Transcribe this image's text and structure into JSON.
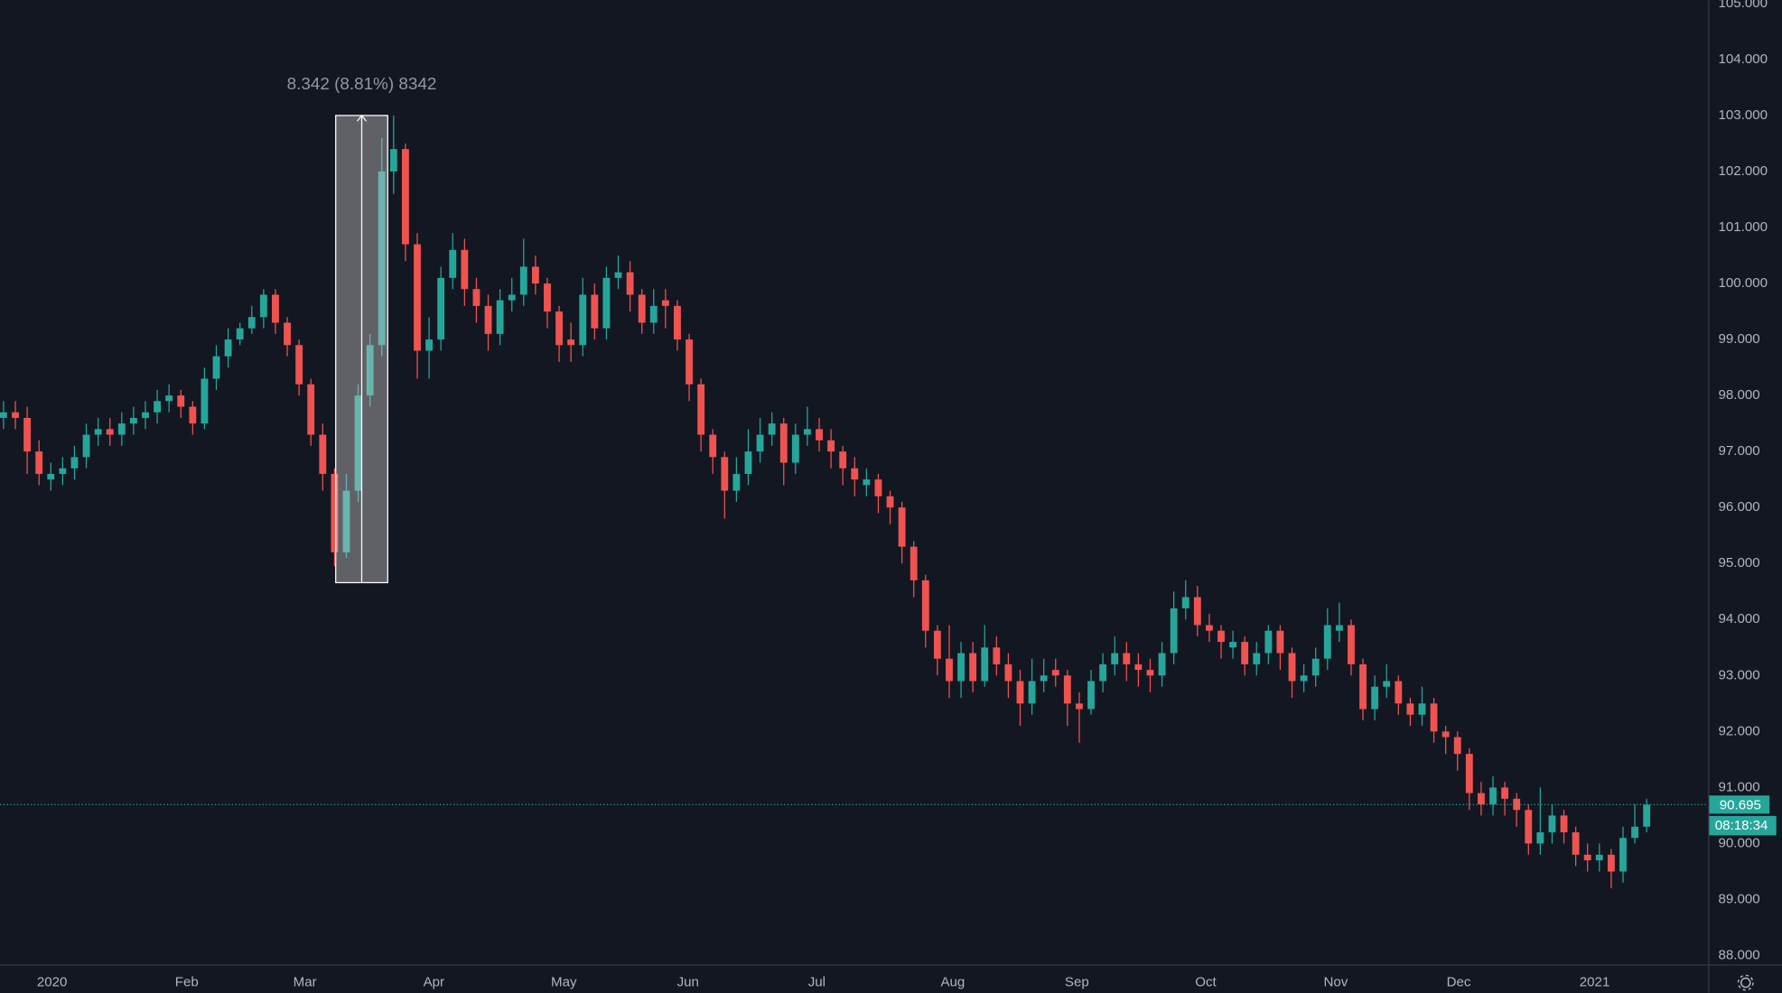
{
  "chart_data": {
    "type": "candlestick",
    "background": "#131722",
    "up_color": "#26a69a",
    "down_color": "#ef5350",
    "grid": false,
    "xlim": [
      -0.3,
      144.2
    ],
    "xticks": [
      {
        "value": 4.1,
        "label": "2020"
      },
      {
        "value": 15.5,
        "label": "Feb"
      },
      {
        "value": 25.5,
        "label": "Mar"
      },
      {
        "value": 36.4,
        "label": "Apr"
      },
      {
        "value": 47.4,
        "label": "May"
      },
      {
        "value": 57.9,
        "label": "Jun"
      },
      {
        "value": 68.8,
        "label": "Jul"
      },
      {
        "value": 80.3,
        "label": "Aug"
      },
      {
        "value": 90.8,
        "label": "Sep"
      },
      {
        "value": 101.7,
        "label": "Oct"
      },
      {
        "value": 112.7,
        "label": "Nov"
      },
      {
        "value": 123.1,
        "label": "Dec"
      },
      {
        "value": 134.6,
        "label": "2021"
      }
    ],
    "ylim": [
      87.84,
      105.06
    ],
    "yticks": [
      {
        "value": 88,
        "label": "88.000"
      },
      {
        "value": 89,
        "label": "89.000"
      },
      {
        "value": 90,
        "label": "90.000"
      },
      {
        "value": 91,
        "label": "91.000"
      },
      {
        "value": 92,
        "label": "92.000"
      },
      {
        "value": 93,
        "label": "93.000"
      },
      {
        "value": 94,
        "label": "94.000"
      },
      {
        "value": 95,
        "label": "95.000"
      },
      {
        "value": 96,
        "label": "96.000"
      },
      {
        "value": 97,
        "label": "97.000"
      },
      {
        "value": 98,
        "label": "98.000"
      },
      {
        "value": 99,
        "label": "99.000"
      },
      {
        "value": 100,
        "label": "100.000"
      },
      {
        "value": 101,
        "label": "101.000"
      },
      {
        "value": 102,
        "label": "102.000"
      },
      {
        "value": 103,
        "label": "103.000"
      },
      {
        "value": 104,
        "label": "104.000"
      },
      {
        "value": 105,
        "label": "105.000"
      }
    ],
    "open": [
      97.6,
      97.7,
      97.6,
      97.0,
      96.5,
      96.6,
      96.7,
      96.9,
      97.3,
      97.4,
      97.3,
      97.5,
      97.6,
      97.7,
      97.9,
      98.0,
      97.8,
      97.5,
      98.3,
      98.7,
      99.0,
      99.2,
      99.4,
      99.8,
      99.3,
      98.9,
      98.2,
      97.3,
      96.6,
      95.2,
      96.3,
      98.0,
      98.9,
      102.0,
      102.4,
      100.7,
      98.8,
      99.0,
      100.1,
      100.6,
      99.9,
      99.6,
      99.1,
      99.7,
      99.8,
      100.3,
      100.0,
      99.5,
      99.0,
      98.9,
      99.8,
      99.2,
      100.1,
      100.2,
      99.8,
      99.3,
      99.7,
      99.6,
      99.0,
      98.2,
      97.3,
      96.9,
      96.3,
      96.6,
      97.0,
      97.3,
      97.5,
      96.8,
      97.3,
      97.4,
      97.2,
      97.0,
      96.7,
      96.4,
      96.5,
      96.2,
      96.0,
      95.3,
      94.7,
      93.8,
      93.3,
      92.9,
      93.4,
      92.9,
      93.5,
      93.2,
      92.9,
      92.5,
      92.9,
      93.1,
      93.0,
      92.5,
      92.4,
      92.9,
      93.2,
      93.4,
      93.2,
      93.1,
      93.0,
      93.4,
      94.2,
      94.4,
      93.9,
      93.8,
      93.5,
      93.6,
      93.2,
      93.4,
      93.8,
      93.4,
      92.9,
      93.0,
      93.3,
      93.8,
      93.9,
      93.2,
      92.4,
      92.8,
      92.9,
      92.5,
      92.3,
      92.5,
      92.0,
      91.9,
      91.6,
      90.9,
      90.7,
      91.0,
      90.8,
      90.6,
      90.0,
      90.2,
      90.5,
      90.2,
      89.8,
      89.7,
      89.8,
      89.5,
      90.1,
      90.3
    ],
    "high": [
      97.9,
      97.9,
      97.8,
      97.2,
      96.8,
      96.9,
      97.1,
      97.5,
      97.6,
      97.6,
      97.7,
      97.8,
      97.9,
      98.1,
      98.2,
      98.1,
      97.9,
      98.5,
      98.9,
      99.2,
      99.3,
      99.6,
      99.9,
      99.9,
      99.4,
      99.0,
      98.3,
      97.5,
      96.7,
      96.6,
      98.2,
      99.1,
      102.6,
      103.0,
      102.5,
      100.9,
      99.4,
      100.3,
      100.9,
      100.8,
      100.1,
      99.8,
      99.9,
      100.1,
      100.8,
      100.5,
      100.1,
      99.6,
      99.3,
      100.1,
      100.0,
      100.3,
      100.5,
      100.4,
      99.9,
      99.9,
      99.9,
      99.7,
      99.1,
      98.3,
      97.4,
      97.0,
      96.9,
      97.4,
      97.6,
      97.7,
      97.6,
      97.5,
      97.8,
      97.6,
      97.4,
      97.1,
      96.9,
      96.7,
      96.6,
      96.3,
      96.1,
      95.4,
      94.8,
      93.9,
      93.9,
      93.6,
      93.6,
      93.9,
      93.7,
      93.4,
      93.1,
      93.3,
      93.3,
      93.3,
      93.1,
      92.7,
      93.1,
      93.4,
      93.7,
      93.6,
      93.4,
      93.3,
      93.6,
      94.5,
      94.7,
      94.6,
      94.1,
      93.9,
      93.8,
      93.7,
      93.6,
      93.9,
      93.9,
      93.5,
      93.2,
      93.5,
      94.2,
      94.3,
      94.0,
      93.3,
      93.0,
      93.2,
      93.0,
      92.6,
      92.8,
      92.6,
      92.1,
      92.0,
      91.7,
      91.1,
      91.2,
      91.1,
      90.9,
      90.7,
      91.0,
      90.7,
      90.6,
      90.3,
      90.0,
      90.0,
      89.9,
      90.3,
      90.7,
      90.8
    ],
    "low": [
      97.4,
      97.4,
      96.6,
      96.4,
      96.3,
      96.4,
      96.5,
      96.7,
      97.1,
      97.1,
      97.1,
      97.3,
      97.4,
      97.5,
      97.7,
      97.6,
      97.3,
      97.4,
      98.1,
      98.5,
      98.9,
      99.1,
      99.2,
      99.1,
      98.7,
      98.0,
      97.1,
      96.3,
      94.95,
      95.1,
      96.1,
      97.8,
      98.7,
      101.6,
      100.4,
      98.3,
      98.3,
      98.8,
      99.9,
      99.6,
      99.3,
      98.8,
      98.9,
      99.5,
      99.6,
      99.8,
      99.2,
      98.6,
      98.6,
      98.7,
      99.0,
      99.0,
      99.9,
      99.5,
      99.1,
      99.1,
      99.2,
      98.8,
      97.9,
      97.0,
      96.6,
      95.8,
      96.1,
      96.4,
      96.8,
      97.1,
      96.4,
      96.6,
      97.1,
      97.0,
      96.7,
      96.4,
      96.2,
      96.2,
      95.9,
      95.7,
      95.0,
      94.4,
      93.5,
      93.0,
      92.6,
      92.6,
      92.7,
      92.8,
      93.0,
      92.6,
      92.1,
      92.3,
      92.7,
      92.8,
      92.1,
      91.8,
      92.3,
      92.7,
      93.0,
      92.9,
      92.8,
      92.7,
      92.8,
      93.2,
      94.0,
      93.7,
      93.6,
      93.3,
      93.3,
      93.0,
      93.0,
      93.2,
      93.1,
      92.6,
      92.7,
      92.8,
      93.1,
      93.6,
      93.0,
      92.2,
      92.2,
      92.6,
      92.3,
      92.1,
      92.1,
      91.8,
      91.6,
      91.3,
      90.6,
      90.5,
      90.5,
      90.5,
      90.3,
      89.8,
      89.8,
      90.0,
      90.0,
      89.6,
      89.5,
      89.5,
      89.2,
      89.3,
      90.0,
      90.2
    ],
    "close": [
      97.7,
      97.6,
      97.0,
      96.6,
      96.6,
      96.7,
      96.9,
      97.3,
      97.4,
      97.3,
      97.5,
      97.6,
      97.7,
      97.9,
      98.0,
      97.8,
      97.5,
      98.3,
      98.7,
      99.0,
      99.2,
      99.4,
      99.8,
      99.3,
      98.9,
      98.2,
      97.3,
      96.6,
      95.2,
      96.3,
      98.0,
      98.9,
      102.0,
      102.4,
      100.7,
      98.8,
      99.0,
      100.1,
      100.6,
      99.9,
      99.6,
      99.1,
      99.7,
      99.8,
      100.3,
      100.0,
      99.5,
      98.9,
      98.9,
      99.8,
      99.2,
      100.1,
      100.2,
      99.8,
      99.3,
      99.6,
      99.6,
      99.0,
      98.2,
      97.3,
      96.9,
      96.3,
      96.6,
      97.0,
      97.3,
      97.5,
      96.8,
      97.3,
      97.4,
      97.2,
      97.0,
      96.7,
      96.5,
      96.5,
      96.2,
      96.0,
      95.3,
      94.7,
      93.8,
      93.3,
      92.9,
      93.4,
      92.9,
      93.5,
      93.2,
      92.9,
      92.5,
      92.9,
      93.0,
      93.0,
      92.5,
      92.4,
      92.9,
      93.2,
      93.4,
      93.2,
      93.1,
      93.0,
      93.4,
      94.2,
      94.4,
      93.9,
      93.8,
      93.6,
      93.6,
      93.2,
      93.4,
      93.8,
      93.4,
      92.9,
      93.0,
      93.3,
      93.9,
      93.9,
      93.2,
      92.4,
      92.8,
      92.9,
      92.5,
      92.3,
      92.5,
      92.0,
      91.9,
      91.6,
      90.9,
      90.7,
      91.0,
      90.8,
      90.6,
      90.0,
      90.2,
      90.5,
      90.2,
      89.8,
      89.7,
      89.8,
      89.5,
      90.1,
      90.3,
      90.695
    ],
    "measure": {
      "label": "8.342 (8.81%) 8342",
      "from": 94.658,
      "to": 103.0,
      "start": 28.1,
      "end": 32.5
    },
    "last_price": {
      "value": 90.695,
      "label": "90.695"
    },
    "countdown": "08:18:34"
  }
}
